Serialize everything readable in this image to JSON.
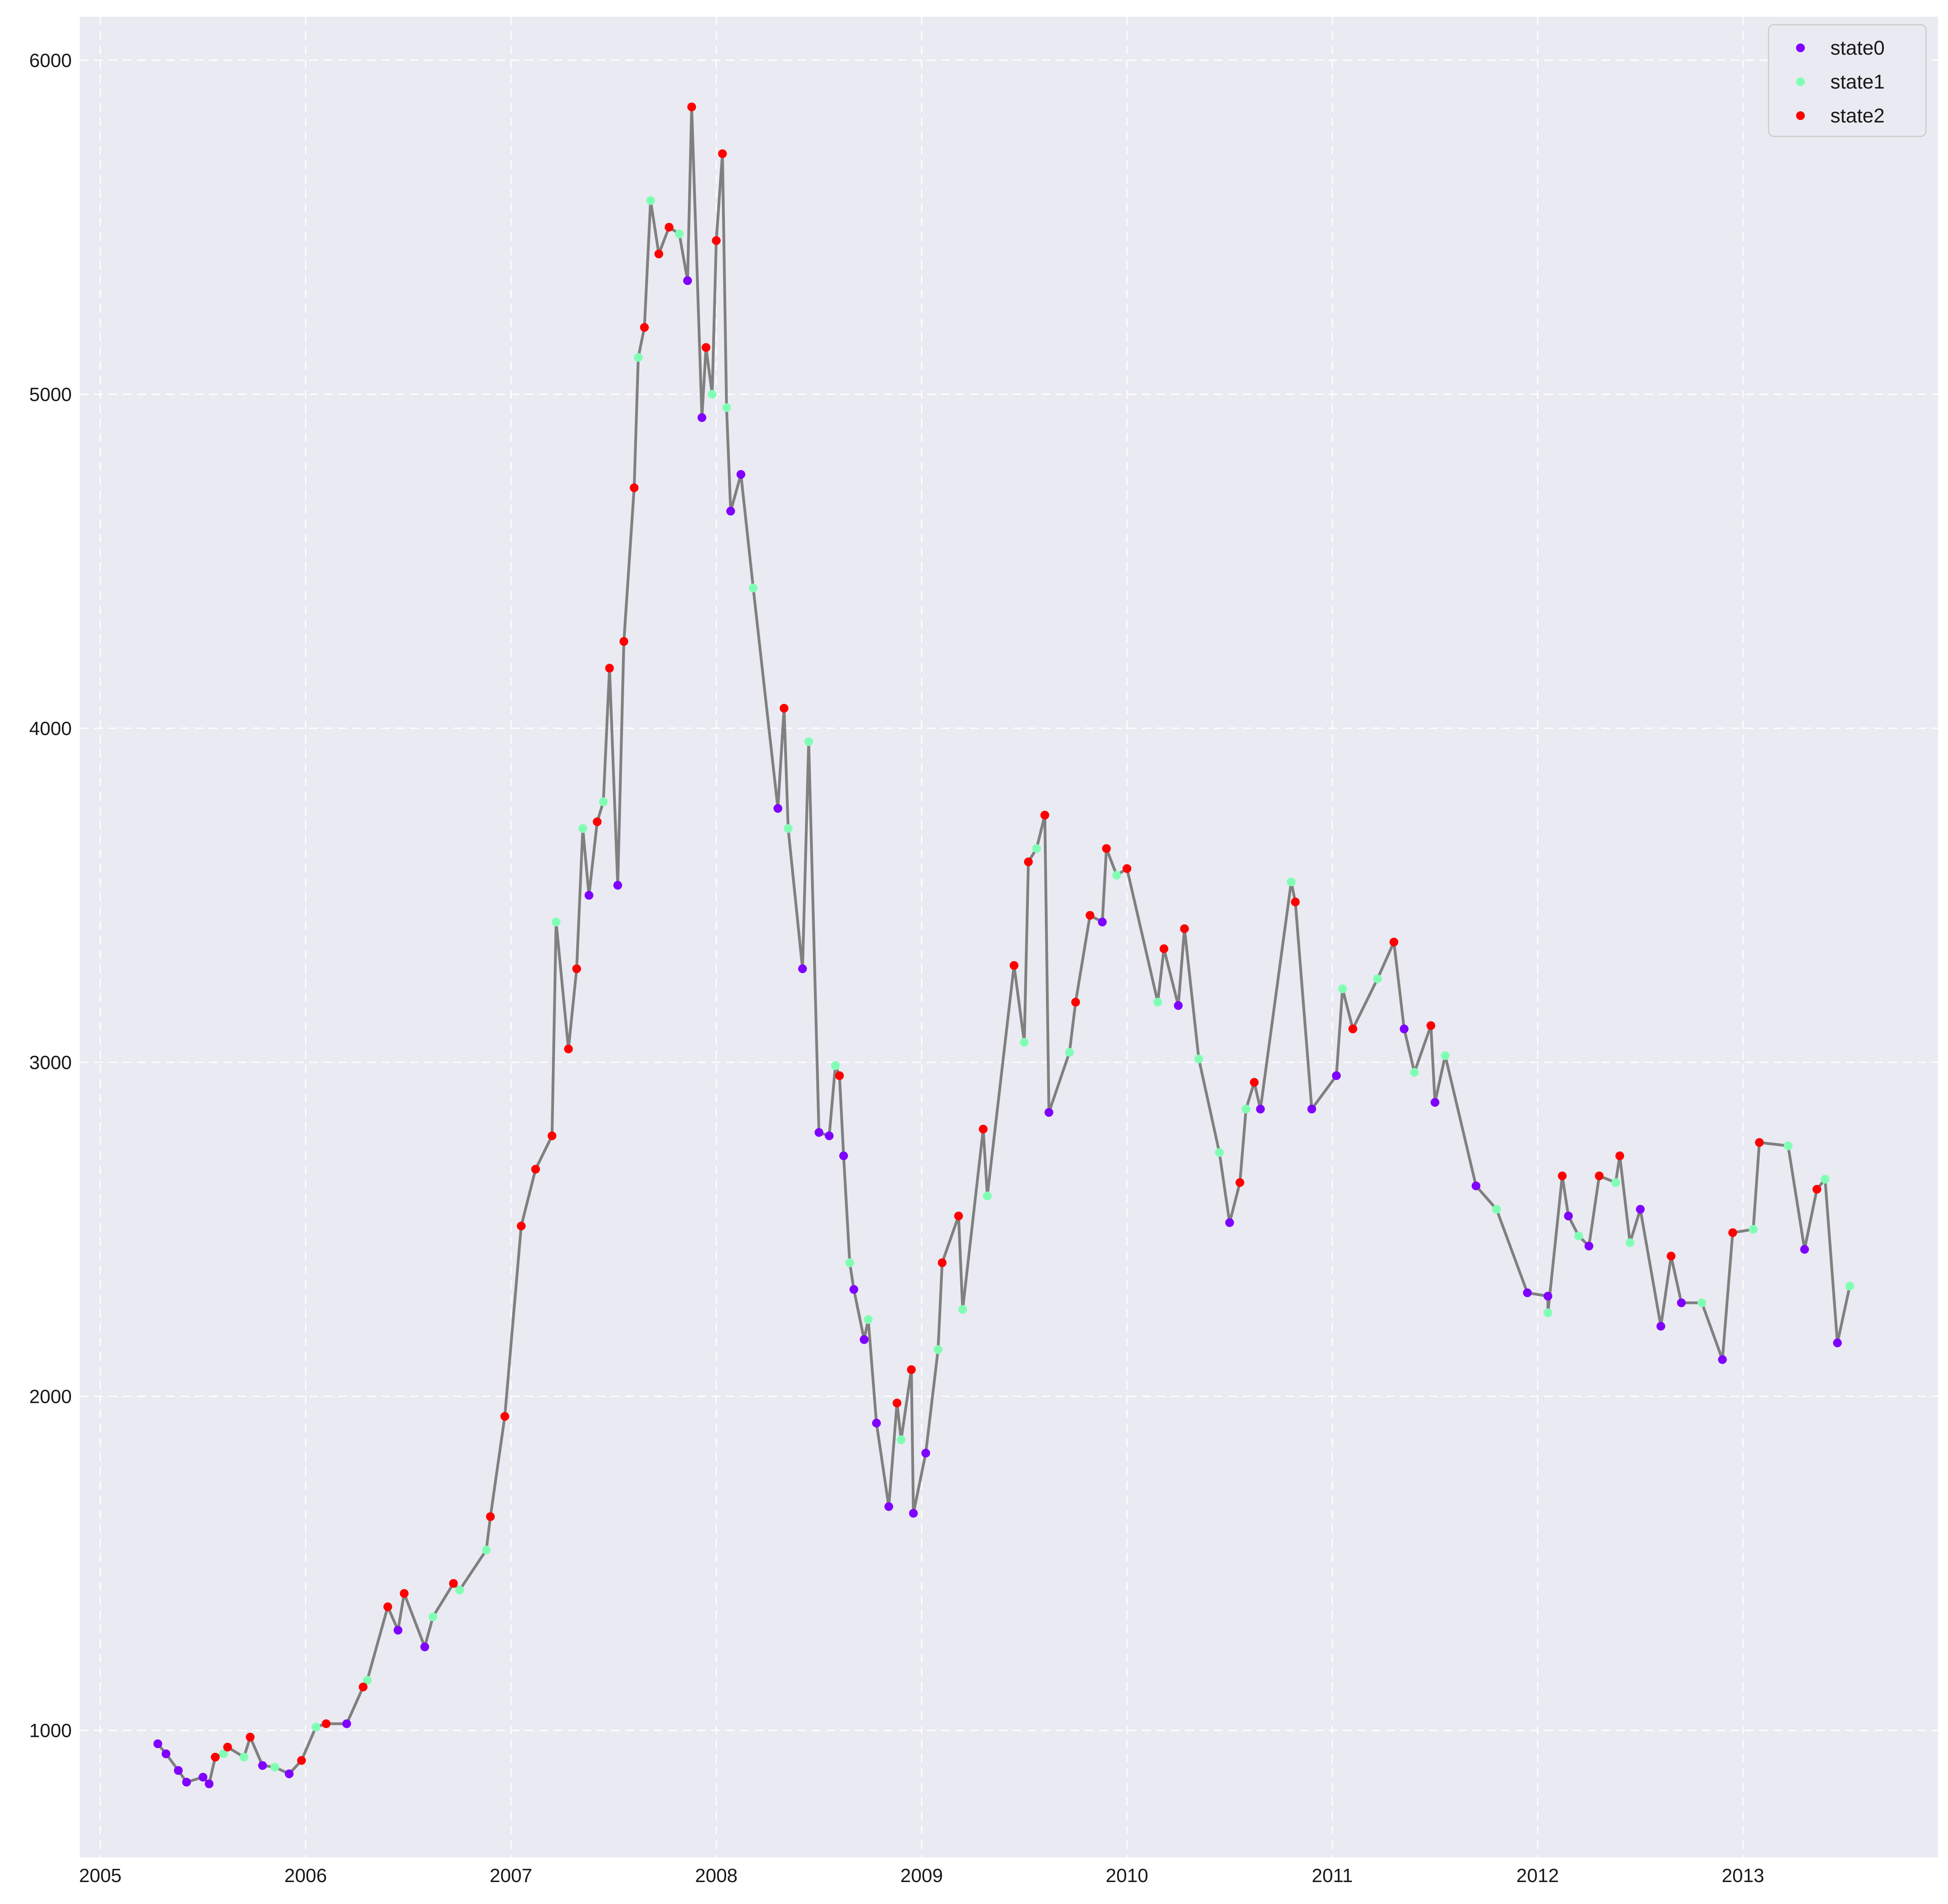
{
  "chart_data": {
    "type": "line",
    "title": "",
    "xlabel": "",
    "ylabel": "",
    "x_ticks": [
      "2005",
      "2006",
      "2007",
      "2008",
      "2009",
      "2010",
      "2011",
      "2012",
      "2013"
    ],
    "y_ticks": [
      "1000",
      "2000",
      "3000",
      "4000",
      "5000",
      "6000"
    ],
    "xlim": [
      2004.9,
      2013.95
    ],
    "ylim": [
      620,
      6130
    ],
    "grid": true,
    "legend_position": "top-right",
    "colors": {
      "background": "#eaeaf2",
      "grid": "#ffffff",
      "line": "#808080",
      "state0": "#8000ff",
      "state1": "#80ffb4",
      "state2": "#ff0000"
    },
    "series": [
      {
        "name": "state0",
        "x": [
          2005.28,
          2005.32,
          2005.38,
          2005.42,
          2005.5,
          2005.53,
          2005.79,
          2005.92,
          2006.2,
          2006.45,
          2006.58,
          2007.38,
          2007.52,
          2007.86,
          2007.93,
          2008.07,
          2008.12,
          2008.3,
          2008.42,
          2008.5,
          2008.55,
          2008.62,
          2008.67,
          2008.72,
          2008.78,
          2008.84,
          2008.96,
          2009.02,
          2009.62,
          2009.88,
          2010.25,
          2010.5,
          2010.65,
          2010.9,
          2011.02,
          2011.35,
          2011.5,
          2011.7,
          2011.95,
          2012.05,
          2012.15,
          2012.25,
          2012.5,
          2012.6,
          2012.7,
          2012.9,
          2013.3,
          2013.46
        ],
        "values": [
          960,
          930,
          880,
          845,
          860,
          840,
          895,
          870,
          1020,
          1300,
          1250,
          3500,
          3530,
          5340,
          4930,
          4650,
          4760,
          3760,
          3280,
          2790,
          2780,
          2720,
          2320,
          2170,
          1920,
          1670,
          1650,
          1830,
          2850,
          3420,
          3170,
          2520,
          2860,
          2860,
          2960,
          3100,
          2880,
          2630,
          2310,
          2300,
          2540,
          2450,
          2560,
          2210,
          2280,
          2110,
          2440,
          2160
        ]
      },
      {
        "name": "state1",
        "x": [
          2005.6,
          2005.7,
          2005.85,
          2006.05,
          2006.3,
          2006.62,
          2006.75,
          2006.88,
          2007.22,
          2007.35,
          2007.45,
          2007.62,
          2007.68,
          2007.82,
          2007.98,
          2008.05,
          2008.18,
          2008.35,
          2008.45,
          2008.58,
          2008.65,
          2008.74,
          2008.9,
          2009.08,
          2009.2,
          2009.32,
          2009.5,
          2009.56,
          2009.72,
          2009.95,
          2010.15,
          2010.35,
          2010.45,
          2010.58,
          2010.8,
          2011.05,
          2011.22,
          2011.4,
          2011.55,
          2011.8,
          2012.05,
          2012.2,
          2012.38,
          2012.45,
          2012.8,
          2013.05,
          2013.22,
          2013.4,
          2013.52
        ],
        "values": [
          930,
          920,
          890,
          1010,
          1150,
          1340,
          1420,
          1540,
          3420,
          3700,
          3780,
          5110,
          5580,
          5480,
          5000,
          4960,
          4420,
          3700,
          3960,
          2990,
          2400,
          2230,
          1870,
          2140,
          2260,
          2600,
          3060,
          3640,
          3030,
          3560,
          3180,
          3010,
          2730,
          2860,
          3540,
          3220,
          3250,
          2970,
          3020,
          2560,
          2250,
          2480,
          2640,
          2460,
          2280,
          2500,
          2750,
          2650,
          2330
        ]
      },
      {
        "name": "state2",
        "x": [
          2005.56,
          2005.62,
          2005.73,
          2005.98,
          2006.1,
          2006.28,
          2006.4,
          2006.48,
          2006.72,
          2006.9,
          2006.97,
          2007.05,
          2007.12,
          2007.2,
          2007.28,
          2007.32,
          2007.42,
          2007.48,
          2007.55,
          2007.6,
          2007.65,
          2007.72,
          2007.77,
          2007.88,
          2007.95,
          2008.0,
          2008.03,
          2008.33,
          2008.6,
          2008.88,
          2008.95,
          2009.1,
          2009.18,
          2009.3,
          2009.45,
          2009.52,
          2009.6,
          2009.75,
          2009.82,
          2009.9,
          2010.0,
          2010.18,
          2010.28,
          2010.55,
          2010.62,
          2010.82,
          2011.1,
          2011.3,
          2011.48,
          2012.12,
          2012.3,
          2012.4,
          2012.65,
          2012.95,
          2013.08,
          2013.36
        ],
        "values": [
          920,
          950,
          980,
          910,
          1020,
          1130,
          1370,
          1410,
          1440,
          1640,
          1940,
          2510,
          2680,
          2780,
          3040,
          3280,
          3720,
          4180,
          4260,
          4720,
          5200,
          5420,
          5500,
          5860,
          5140,
          5460,
          5720,
          4060,
          2960,
          1980,
          2080,
          2400,
          2540,
          2800,
          3290,
          3600,
          3740,
          3180,
          3440,
          3640,
          3580,
          3340,
          3400,
          2640,
          2940,
          3480,
          3100,
          3360,
          3110,
          2660,
          2660,
          2720,
          2420,
          2490,
          2760,
          2620
        ]
      }
    ]
  }
}
